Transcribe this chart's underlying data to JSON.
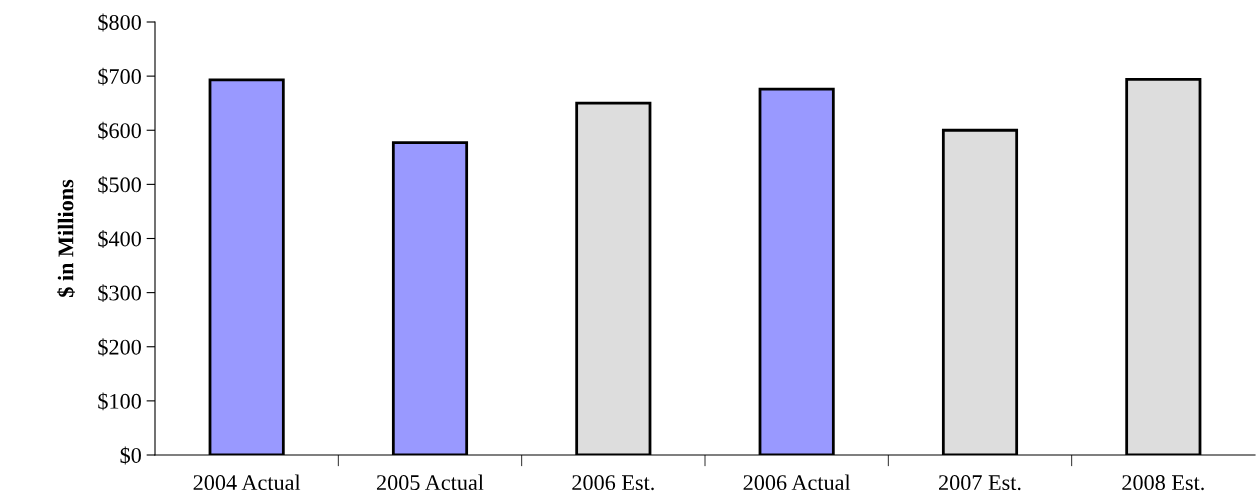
{
  "chart_data": {
    "type": "bar",
    "ylabel": "$ in Millions",
    "categories": [
      "2004 Actual",
      "2005 Actual",
      "2006 Est.",
      "2006 Actual",
      "2007 Est.",
      "2008 Est."
    ],
    "values": [
      693,
      577,
      650,
      676,
      600,
      694
    ],
    "colors": [
      "#9999ff",
      "#9999ff",
      "#dddddd",
      "#9999ff",
      "#dddddd",
      "#dddddd"
    ],
    "ylim": [
      0,
      800
    ],
    "yticks": [
      {
        "value": 0,
        "label": "$0"
      },
      {
        "value": 100,
        "label": "$100"
      },
      {
        "value": 200,
        "label": "$200"
      },
      {
        "value": 300,
        "label": "$300"
      },
      {
        "value": 400,
        "label": "$400"
      },
      {
        "value": 500,
        "label": "$500"
      },
      {
        "value": 600,
        "label": "$600"
      },
      {
        "value": 700,
        "label": "$700"
      },
      {
        "value": 800,
        "label": "$800"
      }
    ],
    "grid": false
  }
}
